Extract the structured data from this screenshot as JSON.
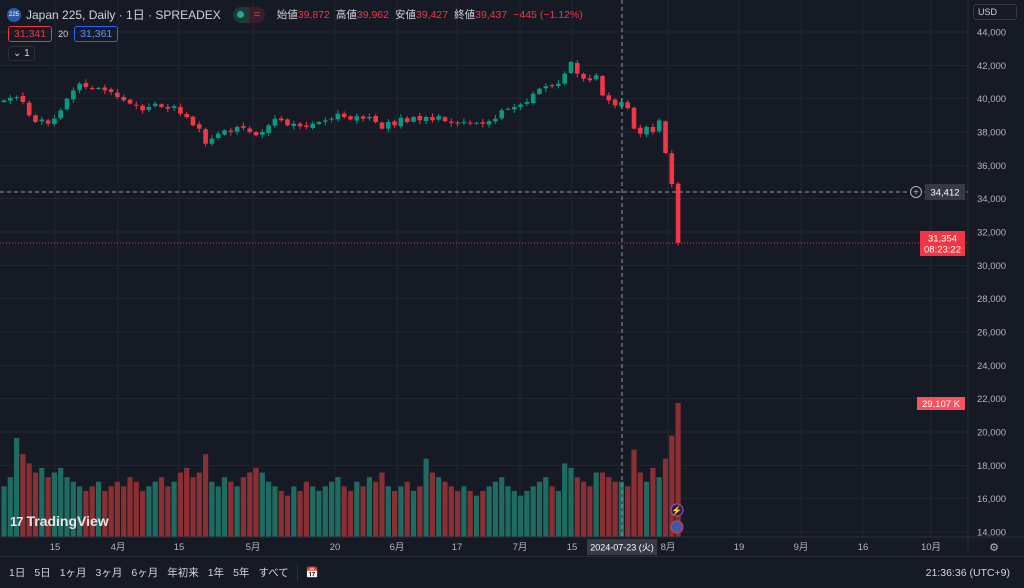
{
  "header": {
    "symbol_badge": "225",
    "title": "Japan 225, Daily · 1日 · SPREADEX",
    "ohlc": [
      {
        "label": "始値",
        "value": "39,872"
      },
      {
        "label": "高値",
        "value": "39,962"
      },
      {
        "label": "安値",
        "value": "39,427"
      },
      {
        "label": "終値",
        "value": "39,437"
      }
    ],
    "change": "−445 (−1.12%)",
    "status_icon": "equals-icon",
    "bid": "31,341",
    "spread": "20",
    "ask": "31,361",
    "collapse_count": "1"
  },
  "currency": "USD",
  "price_axis": {
    "labels": [
      "44,000",
      "42,000",
      "40,000",
      "38,000",
      "36,000",
      "34,000",
      "32,000",
      "30,000",
      "28,000",
      "26,000",
      "24,000",
      "22,000",
      "20,000",
      "18,000",
      "16,000",
      "14,000"
    ],
    "crosshair_price": "34,412",
    "last_price": "31,354",
    "countdown": "08:23:22",
    "volume_label": "29.107 K"
  },
  "time_axis": {
    "labels": [
      "15",
      "4月",
      "15",
      "5月",
      "20",
      "6月",
      "17",
      "7月",
      "15",
      "8月",
      "19",
      "9月",
      "16",
      "10月"
    ],
    "crosshair_date": "2024-07-23 (火)"
  },
  "colors": {
    "up": "#089981",
    "down": "#f23645",
    "up_vol": "#1e6b61",
    "down_vol": "#8a2f33",
    "bg": "#161a25",
    "grid": "#222632"
  },
  "chart_data": {
    "type": "candlestick",
    "closes": [
      39900,
      40050,
      40100,
      39800,
      39000,
      38600,
      38750,
      38500,
      38800,
      39300,
      40000,
      40500,
      40900,
      40700,
      40600,
      40650,
      40500,
      40400,
      40100,
      39900,
      39700,
      39600,
      39300,
      39500,
      39700,
      39500,
      39400,
      39550,
      39100,
      38900,
      38400,
      38200,
      37300,
      37600,
      37900,
      38100,
      38000,
      38300,
      38250,
      38000,
      37800,
      38000,
      38400,
      38800,
      38700,
      38400,
      38500,
      38350,
      38300,
      38500,
      38600,
      38700,
      38800,
      39100,
      38900,
      38750,
      38950,
      38800,
      38900,
      38600,
      38200,
      38600,
      38400,
      38850,
      38600,
      38900,
      38700,
      38900,
      38700,
      38950,
      38650,
      38550,
      38500,
      38600,
      38500,
      38550,
      38500,
      38650,
      38800,
      39300,
      39400,
      39500,
      39650,
      39800,
      40300,
      40600,
      40750,
      40800,
      40900,
      41500,
      42200,
      41500,
      41200,
      41100,
      41400,
      40200,
      39900,
      39600,
      39800,
      39437,
      38200,
      37900,
      38300,
      38000,
      38700,
      36740,
      34880,
      31354
    ],
    "volumes_k": [
      11,
      13,
      21.5,
      18,
      16,
      14,
      15,
      13,
      14,
      15,
      13,
      12,
      11,
      10,
      11,
      12,
      10,
      11,
      12,
      11,
      13,
      12,
      10,
      11,
      12,
      13,
      11,
      12,
      14,
      15,
      13,
      14,
      18,
      12,
      11,
      13,
      12,
      11,
      13,
      14,
      15,
      14,
      12,
      11,
      10,
      9,
      11,
      10,
      12,
      11,
      10,
      11,
      12,
      13,
      11,
      10,
      12,
      11,
      13,
      12,
      14,
      11,
      10,
      11,
      12,
      10,
      11,
      17,
      14,
      13,
      12,
      11,
      10,
      11,
      10,
      9,
      10,
      11,
      12,
      13,
      11,
      10,
      9,
      10,
      11,
      12,
      13,
      11,
      10,
      16,
      15,
      13,
      12,
      11,
      14,
      14,
      13,
      12,
      12,
      11,
      19,
      14,
      12,
      15,
      13,
      17,
      22,
      29.107
    ],
    "ylim": [
      14000,
      44000
    ]
  },
  "toolbar": {
    "ranges": [
      "1日",
      "5日",
      "1ヶ月",
      "3ヶ月",
      "6ヶ月",
      "年初来",
      "1年",
      "5年",
      "すべて"
    ],
    "clock": "21:36:36 (UTC+9)"
  },
  "branding": "TradingView"
}
